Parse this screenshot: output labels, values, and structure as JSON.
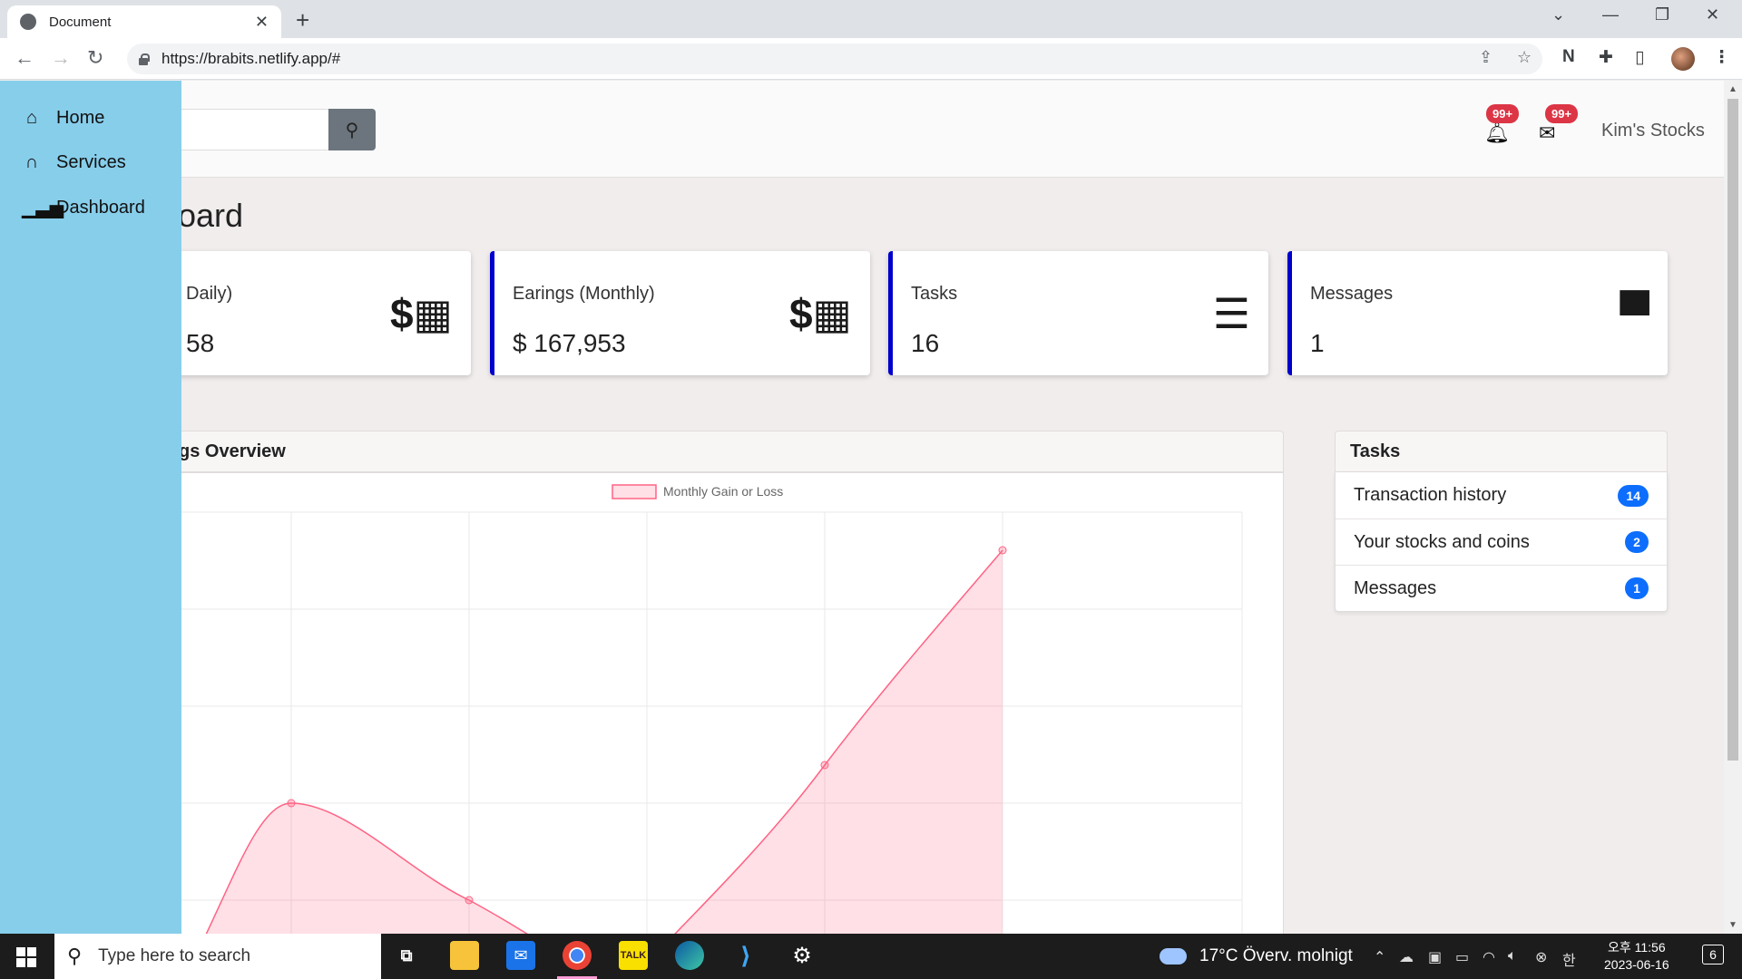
{
  "browser": {
    "tab_title": "Document",
    "url": "https://brabits.netlify.app/#"
  },
  "sidebar": {
    "items": [
      {
        "label": "Home",
        "icon": "home-icon"
      },
      {
        "label": "Services",
        "icon": "headset-icon"
      },
      {
        "label": "Dashboard",
        "icon": "signal-icon"
      }
    ]
  },
  "topbar": {
    "brand": "Kim's Stocks",
    "bell_badge": "99+",
    "mail_badge": "99+"
  },
  "page": {
    "title": "oard"
  },
  "cards": [
    {
      "label": "Daily)",
      "value": "58",
      "icon": "calendar-dollar-icon"
    },
    {
      "label": "Earings (Monthly)",
      "value": "$ 167,953",
      "icon": "calendar-grid-dollar-icon"
    },
    {
      "label": "Tasks",
      "value": "16",
      "icon": "tasks-icon"
    },
    {
      "label": "Messages",
      "value": "1",
      "icon": "comment-icon"
    }
  ],
  "chart_panel": {
    "title": "gs Overview"
  },
  "chart_data": {
    "type": "area",
    "series": [
      {
        "name": "Monthly Gain or Loss",
        "color": "#ff6384",
        "fill": "rgba(255,99,132,0.2)"
      }
    ],
    "legend": "top",
    "grid": true
  },
  "tasks_panel": {
    "title": "Tasks",
    "items": [
      {
        "label": "Transaction history",
        "count": "14"
      },
      {
        "label": "Your stocks and coins",
        "count": "2"
      },
      {
        "label": "Messages",
        "count": "1"
      }
    ]
  },
  "taskbar": {
    "search_placeholder": "Type here to search",
    "weather": "17°C  Överv. molnigt",
    "time": "오후 11:56",
    "date": "2023-06-16",
    "notifications": "6"
  },
  "colors": {
    "sidebar_bg": "#87ceeb",
    "card_accent": "#0000cc",
    "badge_red": "#dc3545",
    "badge_blue": "#0d6efd"
  }
}
